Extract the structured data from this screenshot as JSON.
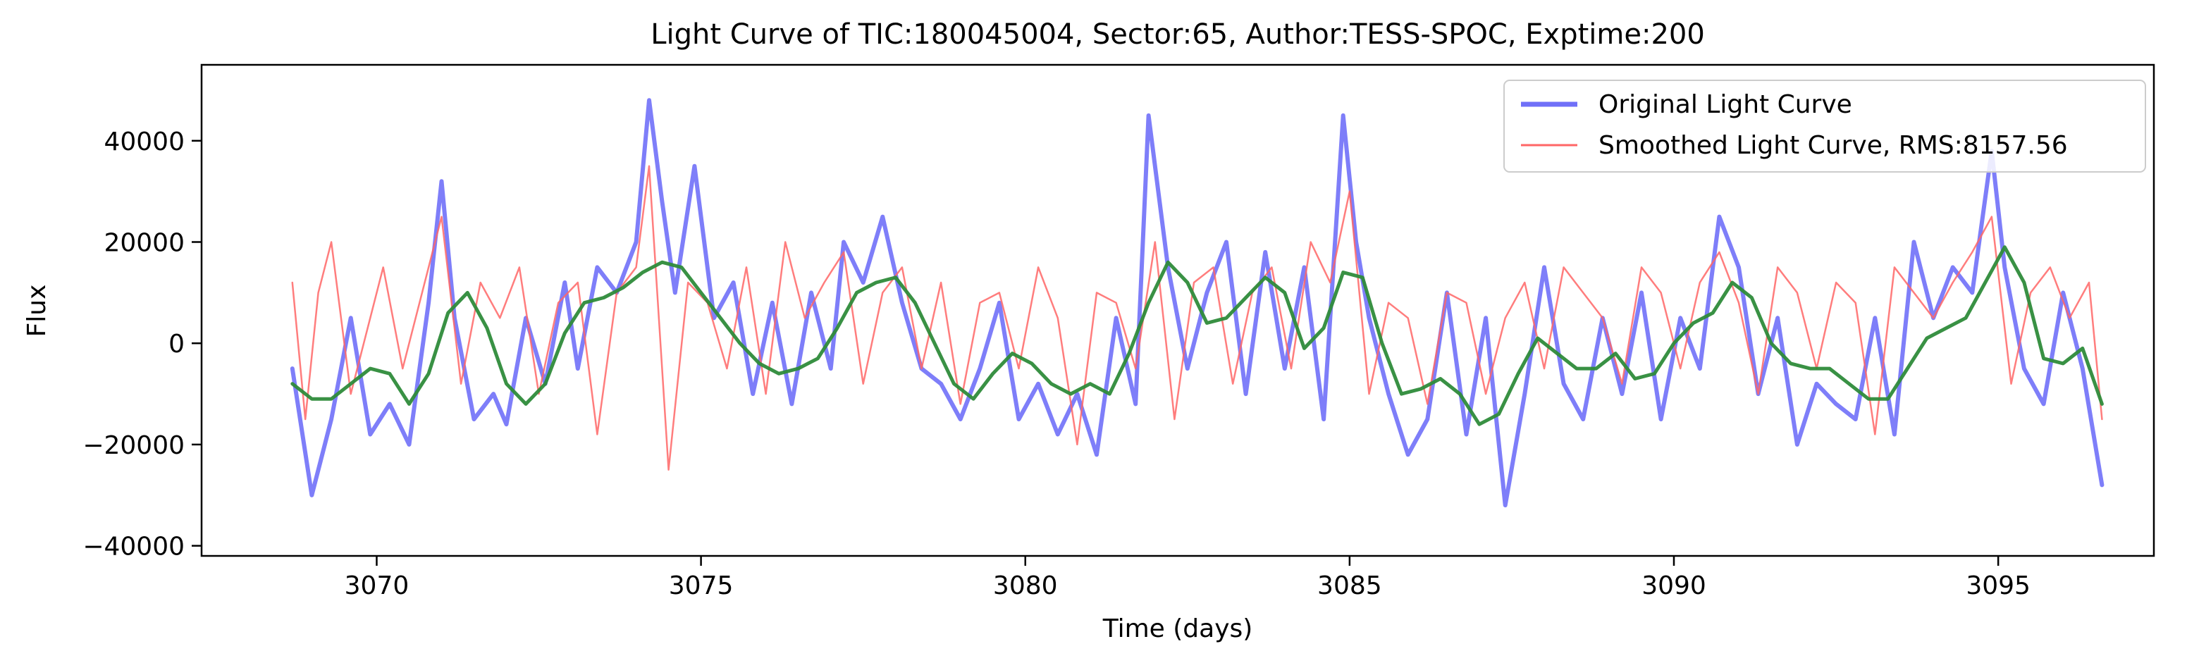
{
  "chart_data": {
    "type": "line",
    "title": "Light Curve of TIC:180045004, Sector:65, Author:TESS-SPOC, Exptime:200",
    "xlabel": "Time (days)",
    "ylabel": "Flux",
    "xlim": [
      3067.3,
      3097.4
    ],
    "ylim": [
      -42000,
      55000
    ],
    "xticks": [
      3070,
      3075,
      3080,
      3085,
      3090,
      3095
    ],
    "xtick_labels": [
      "3070",
      "3075",
      "3080",
      "3085",
      "3090",
      "3095"
    ],
    "yticks": [
      -40000,
      -20000,
      0,
      20000,
      40000
    ],
    "ytick_labels": [
      "−40000",
      "−20000",
      "0",
      "20000",
      "40000"
    ],
    "grid": false,
    "legend": {
      "position": "top-right",
      "entries": [
        {
          "label": "Original Light Curve",
          "color": "#7070f8"
        },
        {
          "label": "Smoothed Light Curve, RMS:8157.56",
          "color": "#ff6666"
        }
      ]
    },
    "series": [
      {
        "name": "Original Light Curve",
        "color": "#7070f8",
        "x": [
          3068.7,
          3069.0,
          3069.3,
          3069.6,
          3069.9,
          3070.2,
          3070.5,
          3070.8,
          3071.0,
          3071.2,
          3071.5,
          3071.8,
          3072.0,
          3072.3,
          3072.6,
          3072.9,
          3073.1,
          3073.4,
          3073.7,
          3074.0,
          3074.2,
          3074.4,
          3074.6,
          3074.9,
          3075.2,
          3075.5,
          3075.8,
          3076.1,
          3076.4,
          3076.7,
          3077.0,
          3077.2,
          3077.5,
          3077.8,
          3078.1,
          3078.4,
          3078.7,
          3079.0,
          3079.3,
          3079.6,
          3079.9,
          3080.2,
          3080.5,
          3080.8,
          3081.1,
          3081.4,
          3081.7,
          3081.9,
          3082.2,
          3082.5,
          3082.8,
          3083.1,
          3083.4,
          3083.7,
          3084.0,
          3084.3,
          3084.6,
          3084.9,
          3085.1,
          3085.3,
          3085.6,
          3085.9,
          3086.2,
          3086.5,
          3086.8,
          3087.1,
          3087.4,
          3087.7,
          3088.0,
          3088.3,
          3088.6,
          3088.9,
          3089.2,
          3089.5,
          3089.8,
          3090.1,
          3090.4,
          3090.7,
          3091.0,
          3091.3,
          3091.6,
          3091.9,
          3092.2,
          3092.5,
          3092.8,
          3093.1,
          3093.4,
          3093.7,
          3094.0,
          3094.3,
          3094.6,
          3094.9,
          3095.1,
          3095.4,
          3095.7,
          3096.0,
          3096.3,
          3096.6
        ],
        "y": [
          -5000,
          -30000,
          -15000,
          5000,
          -18000,
          -12000,
          -20000,
          8000,
          32000,
          5000,
          -15000,
          -10000,
          -16000,
          5000,
          -8000,
          12000,
          -5000,
          15000,
          10000,
          20000,
          48000,
          28000,
          10000,
          35000,
          5000,
          12000,
          -10000,
          8000,
          -12000,
          10000,
          -5000,
          20000,
          12000,
          25000,
          8000,
          -5000,
          -8000,
          -15000,
          -5000,
          8000,
          -15000,
          -8000,
          -18000,
          -10000,
          -22000,
          5000,
          -12000,
          45000,
          15000,
          -5000,
          10000,
          20000,
          -10000,
          18000,
          -5000,
          15000,
          -15000,
          45000,
          20000,
          5000,
          -10000,
          -22000,
          -15000,
          10000,
          -18000,
          5000,
          -32000,
          -10000,
          15000,
          -8000,
          -15000,
          5000,
          -10000,
          10000,
          -15000,
          5000,
          -5000,
          25000,
          15000,
          -10000,
          5000,
          -20000,
          -8000,
          -12000,
          -15000,
          5000,
          -18000,
          20000,
          5000,
          15000,
          10000,
          38000,
          15000,
          -5000,
          -12000,
          10000,
          -5000,
          -28000
        ]
      },
      {
        "name": "Smoothed Light Curve, RMS:8157.56",
        "color": "#ff6666",
        "x": [
          3068.7,
          3068.9,
          3069.1,
          3069.3,
          3069.6,
          3069.9,
          3070.1,
          3070.4,
          3070.7,
          3071.0,
          3071.3,
          3071.6,
          3071.9,
          3072.2,
          3072.5,
          3072.8,
          3073.1,
          3073.4,
          3073.7,
          3074.0,
          3074.2,
          3074.5,
          3074.8,
          3075.1,
          3075.4,
          3075.7,
          3076.0,
          3076.3,
          3076.6,
          3076.9,
          3077.2,
          3077.5,
          3077.8,
          3078.1,
          3078.4,
          3078.7,
          3079.0,
          3079.3,
          3079.6,
          3079.9,
          3080.2,
          3080.5,
          3080.8,
          3081.1,
          3081.4,
          3081.7,
          3082.0,
          3082.3,
          3082.6,
          3082.9,
          3083.2,
          3083.5,
          3083.8,
          3084.1,
          3084.4,
          3084.7,
          3085.0,
          3085.3,
          3085.6,
          3085.9,
          3086.2,
          3086.5,
          3086.8,
          3087.1,
          3087.4,
          3087.7,
          3088.0,
          3088.3,
          3088.6,
          3088.9,
          3089.2,
          3089.5,
          3089.8,
          3090.1,
          3090.4,
          3090.7,
          3091.0,
          3091.3,
          3091.6,
          3091.9,
          3092.2,
          3092.5,
          3092.8,
          3093.1,
          3093.4,
          3093.7,
          3094.0,
          3094.3,
          3094.6,
          3094.9,
          3095.2,
          3095.5,
          3095.8,
          3096.1,
          3096.4,
          3096.6
        ],
        "y": [
          12000,
          -15000,
          10000,
          20000,
          -10000,
          5000,
          15000,
          -5000,
          10000,
          25000,
          -8000,
          12000,
          5000,
          15000,
          -10000,
          8000,
          12000,
          -18000,
          10000,
          15000,
          35000,
          -25000,
          12000,
          8000,
          -5000,
          15000,
          -10000,
          20000,
          5000,
          12000,
          18000,
          -8000,
          10000,
          15000,
          -5000,
          12000,
          -12000,
          8000,
          10000,
          -5000,
          15000,
          5000,
          -20000,
          10000,
          8000,
          -5000,
          20000,
          -15000,
          12000,
          15000,
          -8000,
          10000,
          15000,
          -5000,
          20000,
          12000,
          30000,
          -10000,
          8000,
          5000,
          -12000,
          10000,
          8000,
          -10000,
          5000,
          12000,
          -5000,
          15000,
          10000,
          5000,
          -8000,
          15000,
          10000,
          -5000,
          12000,
          18000,
          8000,
          -10000,
          15000,
          10000,
          -5000,
          12000,
          8000,
          -18000,
          15000,
          10000,
          5000,
          12000,
          18000,
          25000,
          -8000,
          10000,
          15000,
          5000,
          12000,
          -15000
        ]
      },
      {
        "name": "",
        "color": "#2e8b3a",
        "x": [
          3068.7,
          3069.0,
          3069.3,
          3069.6,
          3069.9,
          3070.2,
          3070.5,
          3070.8,
          3071.1,
          3071.4,
          3071.7,
          3072.0,
          3072.3,
          3072.6,
          3072.9,
          3073.2,
          3073.5,
          3073.8,
          3074.1,
          3074.4,
          3074.7,
          3075.0,
          3075.3,
          3075.6,
          3075.9,
          3076.2,
          3076.5,
          3076.8,
          3077.1,
          3077.4,
          3077.7,
          3078.0,
          3078.3,
          3078.6,
          3078.9,
          3079.2,
          3079.5,
          3079.8,
          3080.1,
          3080.4,
          3080.7,
          3081.0,
          3081.3,
          3081.6,
          3081.9,
          3082.2,
          3082.5,
          3082.8,
          3083.1,
          3083.4,
          3083.7,
          3084.0,
          3084.3,
          3084.6,
          3084.9,
          3085.2,
          3085.5,
          3085.8,
          3086.1,
          3086.4,
          3086.7,
          3087.0,
          3087.3,
          3087.6,
          3087.9,
          3088.2,
          3088.5,
          3088.8,
          3089.1,
          3089.4,
          3089.7,
          3090.0,
          3090.3,
          3090.6,
          3090.9,
          3091.2,
          3091.5,
          3091.8,
          3092.1,
          3092.4,
          3092.7,
          3093.0,
          3093.3,
          3093.6,
          3093.9,
          3094.2,
          3094.5,
          3094.8,
          3095.1,
          3095.4,
          3095.7,
          3096.0,
          3096.3,
          3096.6
        ],
        "y": [
          -8000,
          -11000,
          -11000,
          -8000,
          -5000,
          -6000,
          -12000,
          -6000,
          6000,
          10000,
          3000,
          -8000,
          -12000,
          -8000,
          2000,
          8000,
          9000,
          11000,
          14000,
          16000,
          15000,
          10000,
          5000,
          0,
          -4000,
          -6000,
          -5000,
          -3000,
          3000,
          10000,
          12000,
          13000,
          8000,
          0,
          -8000,
          -11000,
          -6000,
          -2000,
          -4000,
          -8000,
          -10000,
          -8000,
          -10000,
          -2000,
          8000,
          16000,
          12000,
          4000,
          5000,
          9000,
          13000,
          10000,
          -1000,
          3000,
          14000,
          13000,
          0,
          -10000,
          -9000,
          -7000,
          -10000,
          -16000,
          -14000,
          -6000,
          1000,
          -2000,
          -5000,
          -5000,
          -2000,
          -7000,
          -6000,
          0,
          4000,
          6000,
          12000,
          9000,
          0,
          -4000,
          -5000,
          -5000,
          -8000,
          -11000,
          -11000,
          -5000,
          1000,
          3000,
          5000,
          12000,
          19000,
          12000,
          -3000,
          -4000,
          -1000,
          -12000
        ]
      }
    ]
  }
}
